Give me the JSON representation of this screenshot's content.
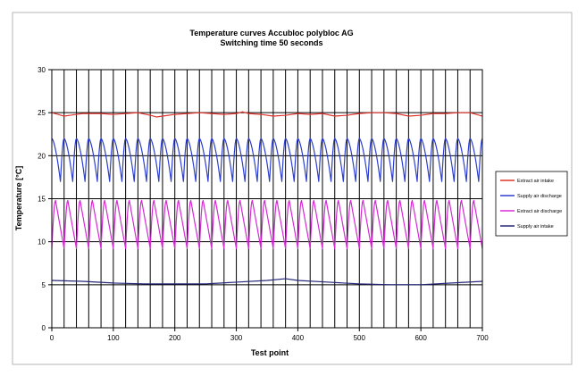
{
  "chart_data": {
    "type": "line",
    "title": "Temperature curves Accubloc polybloc AG",
    "subtitle": "Switching time 50 seconds",
    "xlabel": "Test point",
    "ylabel": "Temperature [°C]",
    "xlim": [
      0,
      700
    ],
    "ylim": [
      0,
      30
    ],
    "x_ticks": [
      0,
      100,
      200,
      300,
      400,
      500,
      600,
      700
    ],
    "y_ticks": [
      0,
      5,
      10,
      15,
      20,
      25,
      30
    ],
    "grid": {
      "horizontal": true,
      "vertical": true,
      "vertical_step": 20
    },
    "legend_position": "right",
    "series": [
      {
        "name": "Extract air intake",
        "color": "#e0322c",
        "x": [
          0,
          10,
          20,
          30,
          40,
          50,
          60,
          80,
          100,
          120,
          140,
          160,
          170,
          180,
          200,
          220,
          240,
          260,
          280,
          300,
          310,
          320,
          340,
          360,
          380,
          400,
          420,
          440,
          460,
          480,
          500,
          520,
          540,
          560,
          580,
          600,
          620,
          640,
          660,
          680,
          690,
          700
        ],
        "values": [
          25.0,
          24.8,
          24.6,
          24.7,
          24.8,
          24.9,
          24.9,
          24.9,
          24.8,
          24.9,
          25.0,
          24.7,
          24.5,
          24.6,
          24.8,
          24.9,
          25.0,
          24.9,
          24.8,
          24.9,
          25.1,
          24.9,
          24.8,
          24.6,
          24.7,
          24.9,
          24.8,
          24.9,
          24.6,
          24.7,
          24.9,
          25.0,
          25.0,
          24.9,
          24.6,
          24.7,
          24.9,
          24.9,
          25.0,
          25.0,
          24.8,
          24.6
        ]
      },
      {
        "name": "Supply air discharge",
        "color": "#2c3ed0",
        "cycle_period": 20,
        "x": [
          0,
          700
        ],
        "peak_values": [
          22.0,
          22.0
        ],
        "trough_values": [
          17.0,
          17.0
        ]
      },
      {
        "name": "Extract air discharge",
        "color": "#d62ad6",
        "cycle_period": 20,
        "x": [
          0,
          700
        ],
        "peak_values": [
          14.8,
          14.8
        ],
        "trough_values": [
          9.2,
          9.2
        ]
      },
      {
        "name": "Supply air intake",
        "color": "#27277a",
        "x": [
          0,
          50,
          100,
          150,
          200,
          250,
          300,
          350,
          380,
          400,
          450,
          500,
          550,
          600,
          650,
          700
        ],
        "values": [
          5.5,
          5.4,
          5.2,
          5.1,
          5.1,
          5.1,
          5.3,
          5.5,
          5.7,
          5.5,
          5.3,
          5.1,
          5.0,
          5.0,
          5.2,
          5.4
        ]
      }
    ]
  }
}
